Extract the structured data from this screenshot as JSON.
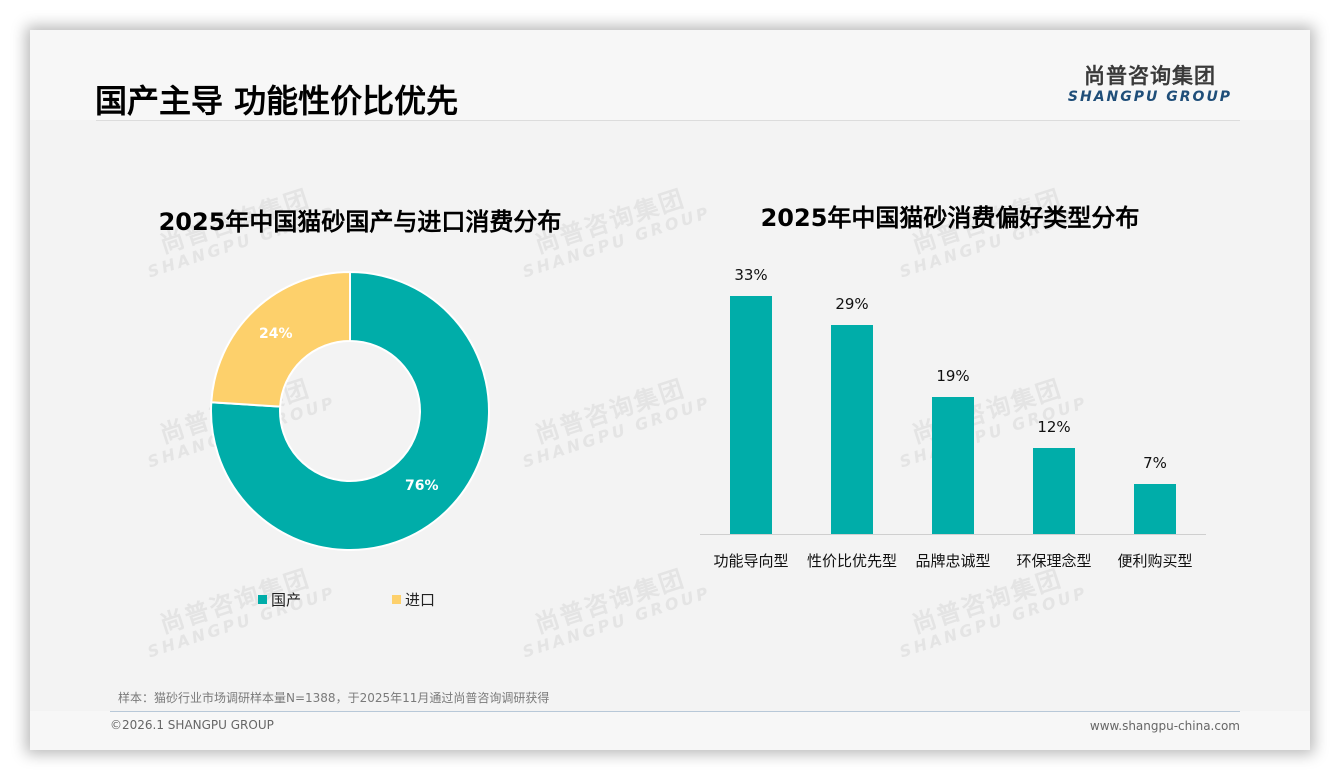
{
  "header": {
    "title": "国产主导 功能性价比优先",
    "logo_cn": "尚普咨询集团",
    "logo_en": "SHANGPU GROUP"
  },
  "watermark": {
    "cn": "尚普咨询集团",
    "en": "SHANGPU GROUP"
  },
  "colors": {
    "teal": "#00ada9",
    "yellow": "#fdd06b",
    "logo_blue": "#1f4e79"
  },
  "donut": {
    "title": "2025年中国猫砂国产与进口消费分布",
    "slices": [
      {
        "label": "国产",
        "value": 76,
        "value_label": "76%",
        "color": "#00ada9"
      },
      {
        "label": "进口",
        "value": 24,
        "value_label": "24%",
        "color": "#fdd06b"
      }
    ]
  },
  "bars": {
    "title": "2025年中国猫砂消费偏好类型分布",
    "items": [
      {
        "label": "功能导向型",
        "value": 33,
        "value_label": "33%"
      },
      {
        "label": "性价比优先型",
        "value": 29,
        "value_label": "29%"
      },
      {
        "label": "品牌忠诚型",
        "value": 19,
        "value_label": "19%"
      },
      {
        "label": "环保理念型",
        "value": 12,
        "value_label": "12%"
      },
      {
        "label": "便利购买型",
        "value": 7,
        "value_label": "7%"
      }
    ]
  },
  "footer": {
    "note": "样本：猫砂行业市场调研样本量N=1388，于2025年11月通过尚普咨询调研获得",
    "copyright": "©2026.1 SHANGPU GROUP",
    "url": "www.shangpu-china.com"
  },
  "chart_data": [
    {
      "type": "pie",
      "title": "2025年中国猫砂国产与进口消费分布",
      "categories": [
        "国产",
        "进口"
      ],
      "values": [
        76,
        24
      ],
      "unit": "%",
      "donut": true,
      "legend_position": "bottom"
    },
    {
      "type": "bar",
      "title": "2025年中国猫砂消费偏好类型分布",
      "categories": [
        "功能导向型",
        "性价比优先型",
        "品牌忠诚型",
        "环保理念型",
        "便利购买型"
      ],
      "values": [
        33,
        29,
        19,
        12,
        7
      ],
      "unit": "%",
      "xlabel": "",
      "ylabel": "",
      "grid": false,
      "data_labels": true
    }
  ]
}
